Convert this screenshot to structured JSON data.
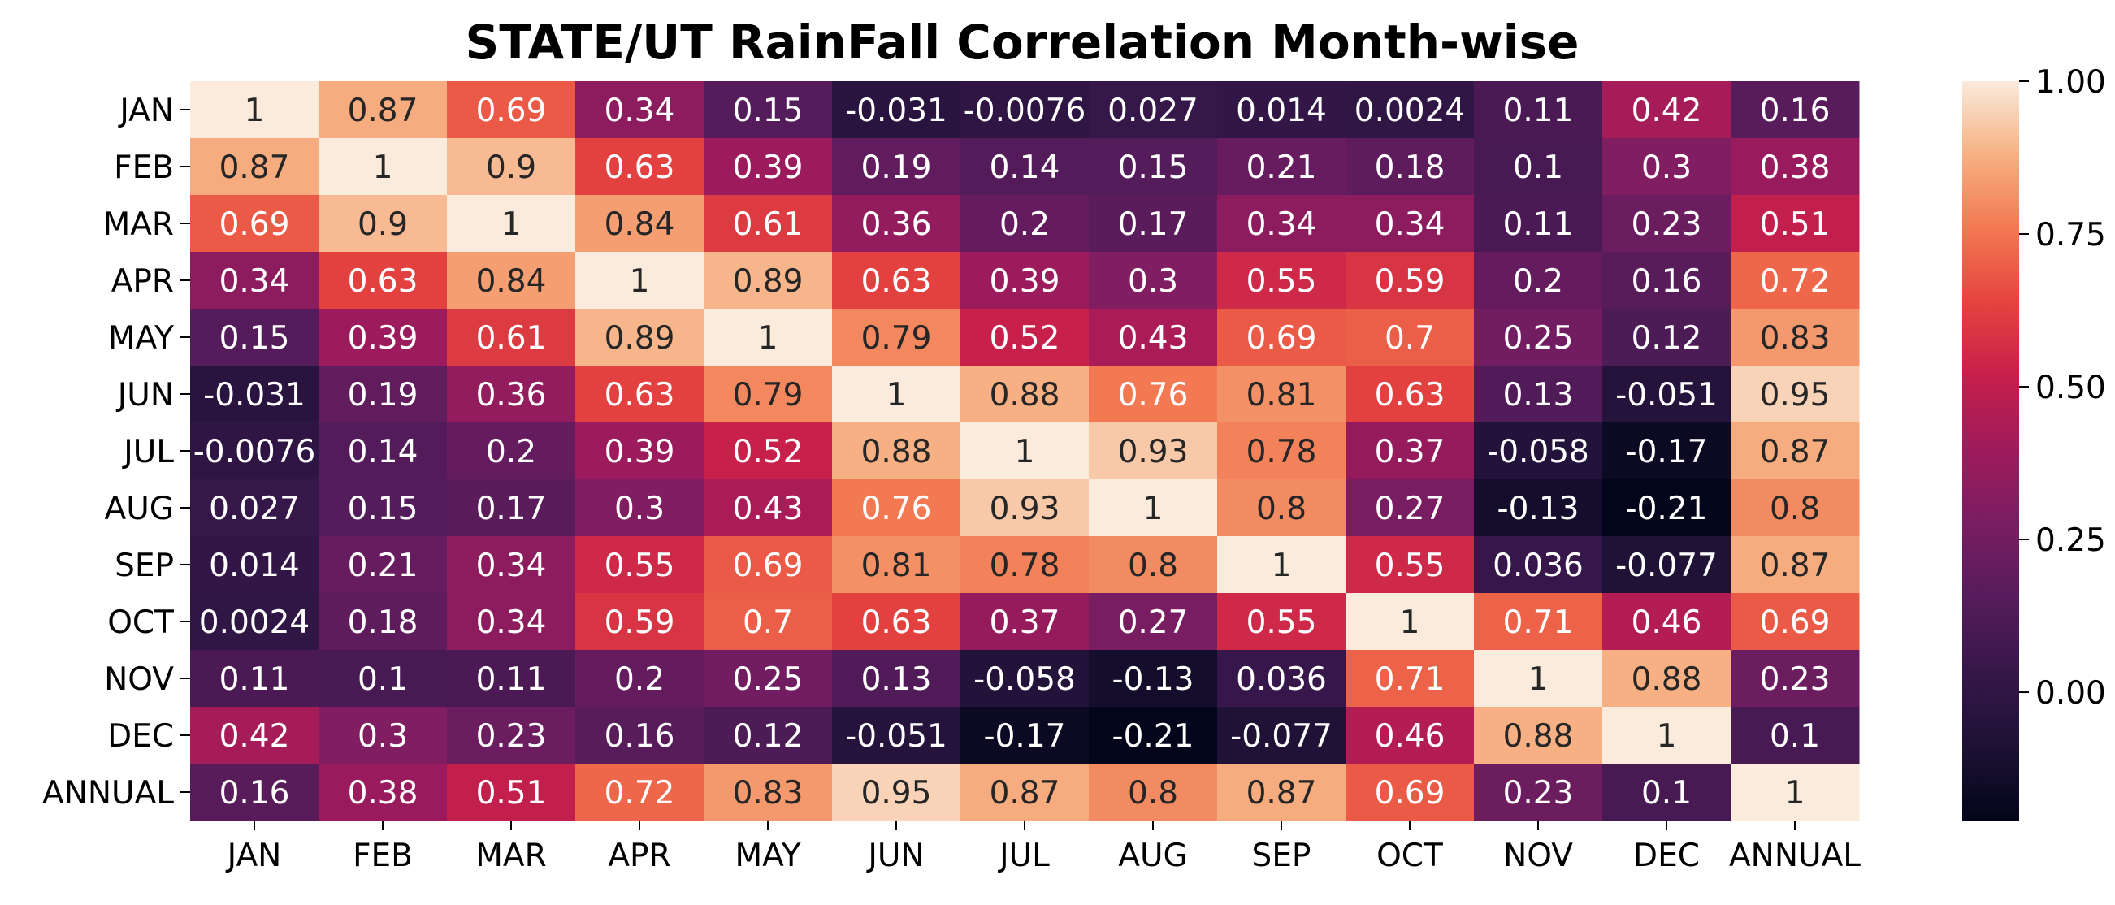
{
  "chart_data": {
    "type": "heatmap",
    "title": "STATE/UT RainFall Correlation Month-wise",
    "xlabel": "",
    "ylabel": "",
    "x_categories": [
      "JAN",
      "FEB",
      "MAR",
      "APR",
      "MAY",
      "JUN",
      "JUL",
      "AUG",
      "SEP",
      "OCT",
      "NOV",
      "DEC",
      "ANNUAL"
    ],
    "y_categories": [
      "JAN",
      "FEB",
      "MAR",
      "APR",
      "MAY",
      "JUN",
      "JUL",
      "AUG",
      "SEP",
      "OCT",
      "NOV",
      "DEC",
      "ANNUAL"
    ],
    "values": [
      [
        1,
        0.87,
        0.69,
        0.34,
        0.15,
        -0.031,
        -0.0076,
        0.027,
        0.014,
        0.0024,
        0.11,
        0.42,
        0.16
      ],
      [
        0.87,
        1,
        0.9,
        0.63,
        0.39,
        0.19,
        0.14,
        0.15,
        0.21,
        0.18,
        0.1,
        0.3,
        0.38
      ],
      [
        0.69,
        0.9,
        1,
        0.84,
        0.61,
        0.36,
        0.2,
        0.17,
        0.34,
        0.34,
        0.11,
        0.23,
        0.51
      ],
      [
        0.34,
        0.63,
        0.84,
        1,
        0.89,
        0.63,
        0.39,
        0.3,
        0.55,
        0.59,
        0.2,
        0.16,
        0.72
      ],
      [
        0.15,
        0.39,
        0.61,
        0.89,
        1,
        0.79,
        0.52,
        0.43,
        0.69,
        0.7,
        0.25,
        0.12,
        0.83
      ],
      [
        -0.031,
        0.19,
        0.36,
        0.63,
        0.79,
        1,
        0.88,
        0.76,
        0.81,
        0.63,
        0.13,
        -0.051,
        0.95
      ],
      [
        -0.0076,
        0.14,
        0.2,
        0.39,
        0.52,
        0.88,
        1,
        0.93,
        0.78,
        0.37,
        -0.058,
        -0.17,
        0.87
      ],
      [
        0.027,
        0.15,
        0.17,
        0.3,
        0.43,
        0.76,
        0.93,
        1,
        0.8,
        0.27,
        -0.13,
        -0.21,
        0.8
      ],
      [
        0.014,
        0.21,
        0.34,
        0.55,
        0.69,
        0.81,
        0.78,
        0.8,
        1,
        0.55,
        0.036,
        -0.077,
        0.87
      ],
      [
        0.0024,
        0.18,
        0.34,
        0.59,
        0.7,
        0.63,
        0.37,
        0.27,
        0.55,
        1,
        0.71,
        0.46,
        0.69
      ],
      [
        0.11,
        0.1,
        0.11,
        0.2,
        0.25,
        0.13,
        -0.058,
        -0.13,
        0.036,
        0.71,
        1,
        0.88,
        0.23
      ],
      [
        0.42,
        0.3,
        0.23,
        0.16,
        0.12,
        -0.051,
        -0.17,
        -0.21,
        -0.077,
        0.46,
        0.88,
        1,
        0.1
      ],
      [
        0.16,
        0.38,
        0.51,
        0.72,
        0.83,
        0.95,
        0.87,
        0.8,
        0.87,
        0.69,
        0.23,
        0.1,
        1
      ]
    ],
    "colorbar": {
      "vmin": -0.21,
      "vmax": 1.0,
      "ticks": [
        1.0,
        0.75,
        0.5,
        0.25,
        0.0
      ],
      "tick_labels": [
        "1.00",
        "0.75",
        "0.50",
        "0.25",
        "0.00"
      ],
      "colormap": "rocket"
    },
    "annotated": true,
    "grid": false,
    "legend": "colorbar-right"
  }
}
